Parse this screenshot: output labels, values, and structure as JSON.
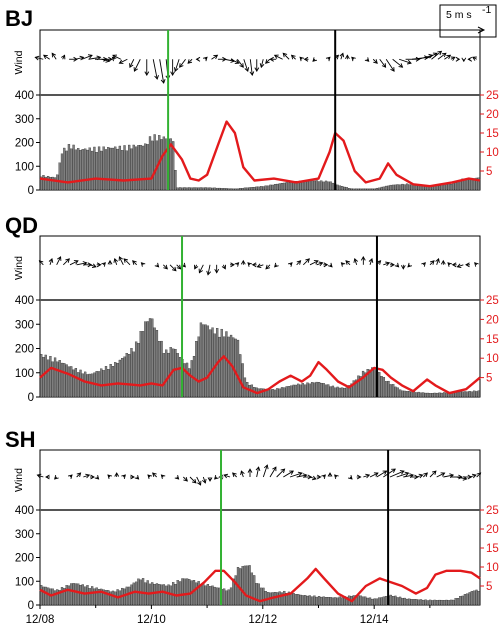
{
  "legend": {
    "speed_label": "5 m s",
    "speed_exp": "-1",
    "ref_speed": 5
  },
  "x_axis": {
    "ticks": [
      "12/08",
      "12/10",
      "12/12",
      "12/14"
    ],
    "tick_days": [
      8,
      10,
      12,
      14
    ],
    "range": [
      8,
      15.9
    ]
  },
  "wind_ylabel": "Wind",
  "colors": {
    "bars": "#7f7f7f",
    "line": "#e31a1c",
    "green_marker": "#33b233",
    "black_marker": "#000000"
  },
  "chart_data": [
    {
      "type": "bar",
      "title": "BJ",
      "left_axis": {
        "ticks": [
          0,
          100,
          200,
          300,
          400
        ],
        "ylim": [
          0,
          400
        ]
      },
      "right_axis": {
        "ticks": [
          5,
          10,
          15,
          20,
          25
        ],
        "ylim": [
          0,
          25
        ]
      },
      "green_marker_day": 10.3,
      "black_marker_day": 13.3,
      "bars": [
        [
          8.0,
          60
        ],
        [
          8.3,
          50
        ],
        [
          8.4,
          160
        ],
        [
          8.55,
          185
        ],
        [
          8.7,
          165
        ],
        [
          9.0,
          170
        ],
        [
          9.5,
          175
        ],
        [
          9.9,
          185
        ],
        [
          10.0,
          220
        ],
        [
          10.2,
          215
        ],
        [
          10.4,
          205
        ],
        [
          10.45,
          10
        ],
        [
          11.0,
          10
        ],
        [
          11.5,
          5
        ],
        [
          12.0,
          15
        ],
        [
          12.4,
          30
        ],
        [
          12.8,
          40
        ],
        [
          13.2,
          35
        ],
        [
          13.35,
          20
        ],
        [
          13.6,
          5
        ],
        [
          14.0,
          5
        ],
        [
          14.3,
          20
        ],
        [
          14.6,
          25
        ],
        [
          15.0,
          15
        ],
        [
          15.4,
          25
        ],
        [
          15.6,
          45
        ],
        [
          15.9,
          50
        ]
      ],
      "line": [
        [
          8.0,
          3
        ],
        [
          8.5,
          2
        ],
        [
          9.0,
          3
        ],
        [
          9.5,
          2.5
        ],
        [
          10.0,
          3
        ],
        [
          10.2,
          9
        ],
        [
          10.35,
          12
        ],
        [
          10.55,
          8
        ],
        [
          10.7,
          3
        ],
        [
          10.85,
          2.5
        ],
        [
          11.0,
          4
        ],
        [
          11.2,
          12
        ],
        [
          11.35,
          18
        ],
        [
          11.5,
          15
        ],
        [
          11.65,
          6
        ],
        [
          11.85,
          2.5
        ],
        [
          12.2,
          3
        ],
        [
          12.6,
          2
        ],
        [
          13.0,
          3
        ],
        [
          13.2,
          10
        ],
        [
          13.3,
          15
        ],
        [
          13.45,
          13
        ],
        [
          13.65,
          5
        ],
        [
          13.85,
          2
        ],
        [
          14.1,
          3
        ],
        [
          14.25,
          7
        ],
        [
          14.4,
          4
        ],
        [
          14.7,
          1.5
        ],
        [
          15.0,
          1
        ],
        [
          15.4,
          2
        ],
        [
          15.7,
          3
        ],
        [
          15.9,
          2.5
        ]
      ],
      "wind_u": [
        -2,
        -1.5,
        -1,
        0.5,
        2,
        2,
        2.5,
        3,
        3,
        2,
        1,
        -0.5,
        -2,
        -2,
        -1,
        -1.5,
        0,
        1,
        1,
        0.5,
        0,
        -1,
        -1.5,
        -1,
        -0.5,
        0.5,
        1.5,
        2,
        2.5,
        2,
        1.5,
        1,
        0.5,
        0,
        -0.5,
        -1,
        -1.5,
        -2,
        -1.5,
        -1,
        -0.5,
        -1,
        -0.5,
        0,
        0.5,
        1,
        0.5,
        0,
        -0.5,
        0,
        0.5,
        1,
        1.5,
        2,
        2.5,
        3,
        3.5,
        4,
        3.5,
        3,
        2.5,
        2,
        1.5,
        1,
        0.5,
        0,
        -0.5,
        -1
      ],
      "wind_v": [
        0.5,
        1,
        1.5,
        1,
        0,
        0.5,
        1,
        0.5,
        0,
        -0.5,
        0,
        0.5,
        1,
        -1,
        -2,
        -3,
        -4,
        -5,
        -6,
        -5,
        -4,
        -3,
        -2,
        -1,
        0,
        0.5,
        1,
        0,
        -0.5,
        -1,
        -2,
        -3,
        -4,
        -3,
        -2,
        -1,
        0,
        1,
        1.5,
        1,
        0.5,
        0,
        -0.5,
        0,
        0.5,
        1,
        1.5,
        1,
        0.5,
        0,
        -0.5,
        -1,
        -2,
        -3,
        -2,
        -1,
        0,
        0.5,
        1,
        1.5,
        2,
        1.5,
        1,
        0.5,
        0,
        -0.5,
        0,
        0.5
      ]
    },
    {
      "type": "bar",
      "title": "QD",
      "left_axis": {
        "ticks": [
          0,
          100,
          200,
          300,
          400
        ],
        "ylim": [
          0,
          400
        ]
      },
      "right_axis": {
        "ticks": [
          5,
          10,
          15,
          20,
          25
        ],
        "ylim": [
          0,
          25
        ]
      },
      "green_marker_day": 10.55,
      "black_marker_day": 14.05,
      "bars": [
        [
          8.0,
          170
        ],
        [
          8.3,
          150
        ],
        [
          8.6,
          115
        ],
        [
          8.9,
          90
        ],
        [
          9.1,
          110
        ],
        [
          9.4,
          140
        ],
        [
          9.7,
          200
        ],
        [
          9.9,
          300
        ],
        [
          10.0,
          320
        ],
        [
          10.1,
          260
        ],
        [
          10.25,
          180
        ],
        [
          10.4,
          200
        ],
        [
          10.55,
          150
        ],
        [
          10.7,
          120
        ],
        [
          10.9,
          300
        ],
        [
          11.1,
          270
        ],
        [
          11.3,
          260
        ],
        [
          11.55,
          230
        ],
        [
          11.7,
          60
        ],
        [
          11.9,
          35
        ],
        [
          12.2,
          30
        ],
        [
          12.6,
          50
        ],
        [
          13.0,
          60
        ],
        [
          13.3,
          40
        ],
        [
          13.5,
          35
        ],
        [
          13.8,
          100
        ],
        [
          14.0,
          120
        ],
        [
          14.2,
          70
        ],
        [
          14.5,
          25
        ],
        [
          15.0,
          15
        ],
        [
          15.5,
          20
        ],
        [
          15.9,
          25
        ]
      ],
      "line": [
        [
          8.0,
          5
        ],
        [
          8.2,
          7.5
        ],
        [
          8.5,
          6
        ],
        [
          8.8,
          4
        ],
        [
          9.1,
          3
        ],
        [
          9.4,
          3.5
        ],
        [
          9.8,
          3
        ],
        [
          10.0,
          3.5
        ],
        [
          10.2,
          3
        ],
        [
          10.4,
          7
        ],
        [
          10.55,
          7.5
        ],
        [
          10.7,
          5.5
        ],
        [
          10.85,
          4
        ],
        [
          11.0,
          5
        ],
        [
          11.2,
          9
        ],
        [
          11.3,
          10.5
        ],
        [
          11.45,
          8
        ],
        [
          11.65,
          2.5
        ],
        [
          11.9,
          1
        ],
        [
          12.1,
          2
        ],
        [
          12.3,
          4
        ],
        [
          12.5,
          5.5
        ],
        [
          12.7,
          4
        ],
        [
          12.85,
          5.5
        ],
        [
          13.0,
          9
        ],
        [
          13.15,
          7
        ],
        [
          13.35,
          4
        ],
        [
          13.55,
          2.5
        ],
        [
          13.8,
          5
        ],
        [
          14.0,
          7.5
        ],
        [
          14.15,
          7
        ],
        [
          14.3,
          5
        ],
        [
          14.5,
          3
        ],
        [
          14.7,
          1.5
        ],
        [
          14.95,
          4.5
        ],
        [
          15.1,
          3
        ],
        [
          15.35,
          1
        ],
        [
          15.65,
          2
        ],
        [
          15.9,
          5
        ]
      ],
      "wind_u": [
        -1,
        0.5,
        1,
        1.5,
        2,
        2.5,
        2,
        1.5,
        1,
        0.5,
        0,
        -0.5,
        -1,
        -1.5,
        -1,
        -0.5,
        0,
        0.5,
        1,
        1.5,
        1,
        0.5,
        0,
        -0.5,
        -1,
        -0.5,
        0,
        0.5,
        1,
        0.5,
        0,
        -0.5,
        -1,
        -1.5,
        -1,
        -0.5,
        0,
        0.5,
        1,
        1.5,
        2,
        1.5,
        1,
        0.5,
        0,
        -0.5,
        -1,
        -0.5,
        0,
        0.5,
        1,
        1.5,
        1,
        0.5,
        0,
        -0.5,
        0,
        0.5,
        1,
        0.5,
        0,
        -0.5,
        -1,
        -1.5,
        -1,
        -0.5
      ],
      "wind_v": [
        1,
        1.5,
        2,
        1.5,
        1,
        0.5,
        0,
        -0.5,
        0,
        0.5,
        1,
        1.5,
        2,
        1.5,
        1,
        0.5,
        0,
        -0.5,
        -1,
        -1.5,
        -1,
        -0.5,
        0,
        -1,
        -2,
        -2.5,
        -2,
        -1,
        0,
        0.5,
        1,
        0.5,
        0,
        -0.5,
        -1,
        -0.5,
        0,
        0.5,
        1,
        1.5,
        1,
        0.5,
        0,
        -0.5,
        0,
        0.5,
        1,
        1.5,
        2,
        1.5,
        1,
        0.5,
        0,
        -0.5,
        -1,
        -0.5,
        0,
        0.5,
        1,
        1.5,
        1,
        0.5,
        0,
        -0.5,
        0,
        0.5
      ]
    },
    {
      "type": "bar",
      "title": "SH",
      "left_axis": {
        "ticks": [
          0,
          100,
          200,
          300,
          400
        ],
        "ylim": [
          0,
          400
        ]
      },
      "right_axis": {
        "ticks": [
          5,
          10,
          15,
          20,
          25
        ],
        "ylim": [
          0,
          25
        ]
      },
      "green_marker_day": 11.25,
      "black_marker_day": 14.25,
      "bars": [
        [
          8.0,
          80
        ],
        [
          8.3,
          60
        ],
        [
          8.6,
          90
        ],
        [
          9.0,
          70
        ],
        [
          9.3,
          55
        ],
        [
          9.6,
          75
        ],
        [
          9.8,
          110
        ],
        [
          10.0,
          90
        ],
        [
          10.3,
          80
        ],
        [
          10.6,
          110
        ],
        [
          10.9,
          90
        ],
        [
          11.2,
          70
        ],
        [
          11.4,
          60
        ],
        [
          11.55,
          150
        ],
        [
          11.75,
          165
        ],
        [
          11.9,
          90
        ],
        [
          12.1,
          50
        ],
        [
          12.4,
          55
        ],
        [
          12.7,
          40
        ],
        [
          13.0,
          35
        ],
        [
          13.3,
          30
        ],
        [
          13.7,
          40
        ],
        [
          14.0,
          25
        ],
        [
          14.3,
          40
        ],
        [
          14.6,
          25
        ],
        [
          15.0,
          20
        ],
        [
          15.4,
          20
        ],
        [
          15.8,
          60
        ]
      ],
      "line": [
        [
          8.0,
          4
        ],
        [
          8.2,
          2.5
        ],
        [
          8.5,
          4
        ],
        [
          8.8,
          3
        ],
        [
          9.1,
          3.5
        ],
        [
          9.4,
          2
        ],
        [
          9.7,
          3.5
        ],
        [
          9.95,
          3
        ],
        [
          10.2,
          3.5
        ],
        [
          10.45,
          2.5
        ],
        [
          10.7,
          3
        ],
        [
          10.95,
          6
        ],
        [
          11.15,
          9
        ],
        [
          11.3,
          9
        ],
        [
          11.5,
          6
        ],
        [
          11.7,
          2.5
        ],
        [
          11.95,
          1
        ],
        [
          12.2,
          2
        ],
        [
          12.5,
          3
        ],
        [
          12.8,
          7
        ],
        [
          12.95,
          9.5
        ],
        [
          13.1,
          7
        ],
        [
          13.35,
          3
        ],
        [
          13.6,
          1
        ],
        [
          13.85,
          5
        ],
        [
          14.1,
          7
        ],
        [
          14.3,
          6
        ],
        [
          14.5,
          5
        ],
        [
          14.75,
          3
        ],
        [
          14.95,
          4.5
        ],
        [
          15.1,
          8
        ],
        [
          15.3,
          9
        ],
        [
          15.55,
          9
        ],
        [
          15.75,
          8.5
        ],
        [
          15.9,
          7
        ]
      ],
      "wind_u": [
        -1.5,
        -1,
        -0.5,
        0,
        0.5,
        1,
        1.5,
        1,
        0.5,
        0,
        -0.5,
        0,
        0.5,
        1,
        0.5,
        0,
        -0.5,
        -1,
        -0.5,
        0,
        0.5,
        1,
        1.5,
        1,
        0.5,
        0,
        -0.5,
        -1,
        -1.5,
        -1,
        -0.5,
        0,
        0.5,
        1,
        1.5,
        2,
        2.5,
        3,
        2.5,
        2,
        1.5,
        1,
        0.5,
        0,
        -0.5,
        0,
        0.5,
        1,
        1.5,
        2,
        2.5,
        3,
        3.5,
        3,
        2.5,
        2,
        1.5,
        1,
        1.5,
        2,
        2.5,
        3,
        2.5,
        2,
        1.5,
        1
      ],
      "wind_v": [
        0.5,
        0,
        -0.5,
        0,
        0.5,
        1,
        0.5,
        0,
        -0.5,
        0,
        0.5,
        1,
        0.5,
        0,
        -0.5,
        0,
        0.5,
        1,
        0.5,
        0,
        -0.5,
        -1,
        -1.5,
        -2,
        -1.5,
        -1,
        -0.5,
        0,
        0.5,
        1,
        1.5,
        2,
        2.5,
        3,
        2.5,
        2,
        1.5,
        1,
        0.5,
        0,
        -0.5,
        0,
        0.5,
        1,
        0.5,
        0,
        -0.5,
        0,
        0.5,
        1,
        1.5,
        2,
        1.5,
        1,
        0.5,
        0,
        0.5,
        1,
        1.5,
        1,
        0.5,
        0,
        -0.5,
        0,
        0.5,
        1
      ]
    }
  ]
}
